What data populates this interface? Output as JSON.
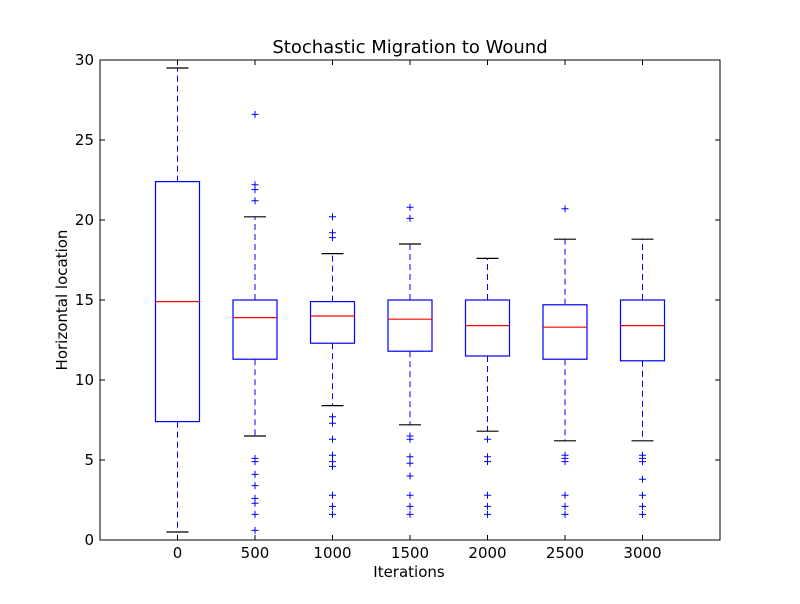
{
  "chart_data": {
    "type": "box",
    "title": "Stochastic Migration to Wound",
    "xlabel": "Iterations",
    "ylabel": "Horizontal location",
    "ylim": [
      0,
      30
    ],
    "yticks": [
      "0",
      "5",
      "10",
      "15",
      "20",
      "25",
      "30"
    ],
    "categories": [
      "0",
      "500",
      "1000",
      "1500",
      "2000",
      "2500",
      "3000"
    ],
    "boxes": [
      {
        "category": "0",
        "whisker_low": 0.5,
        "q1": 7.4,
        "median": 14.9,
        "q3": 22.4,
        "whisker_high": 29.5,
        "outliers": []
      },
      {
        "category": "500",
        "whisker_low": 6.5,
        "q1": 11.3,
        "median": 13.9,
        "q3": 15.0,
        "whisker_high": 20.2,
        "outliers": [
          26.6,
          22.2,
          21.9,
          21.2,
          5.1,
          4.9,
          4.1,
          3.4,
          2.6,
          2.3,
          1.6,
          0.6
        ]
      },
      {
        "category": "1000",
        "whisker_low": 8.4,
        "q1": 12.3,
        "median": 14.0,
        "q3": 14.9,
        "whisker_high": 17.9,
        "outliers": [
          20.2,
          19.2,
          18.9,
          7.7,
          7.3,
          6.3,
          5.3,
          4.9,
          4.6,
          2.8,
          2.1,
          1.6
        ]
      },
      {
        "category": "1500",
        "whisker_low": 7.2,
        "q1": 11.8,
        "median": 13.8,
        "q3": 15.0,
        "whisker_high": 18.5,
        "outliers": [
          20.8,
          20.1,
          6.5,
          6.3,
          5.2,
          4.8,
          4.0,
          2.8,
          2.1,
          1.6
        ]
      },
      {
        "category": "2000",
        "whisker_low": 6.8,
        "q1": 11.5,
        "median": 13.4,
        "q3": 15.0,
        "whisker_high": 17.6,
        "outliers": [
          6.3,
          5.2,
          4.9,
          2.8,
          2.1,
          1.6
        ]
      },
      {
        "category": "2500",
        "whisker_low": 6.2,
        "q1": 11.3,
        "median": 13.3,
        "q3": 14.7,
        "whisker_high": 18.8,
        "outliers": [
          20.7,
          5.3,
          5.1,
          4.9,
          2.8,
          2.1,
          1.6
        ]
      },
      {
        "category": "3000",
        "whisker_low": 6.2,
        "q1": 11.2,
        "median": 13.4,
        "q3": 15.0,
        "whisker_high": 18.8,
        "outliers": [
          5.3,
          5.1,
          4.9,
          3.8,
          2.8,
          2.1,
          1.6
        ]
      }
    ],
    "colors": {
      "box": "#0000ff",
      "median": "#ff0000",
      "cap": "#000000",
      "outlier": "#0000ff"
    },
    "grid": false,
    "legend": "none"
  }
}
